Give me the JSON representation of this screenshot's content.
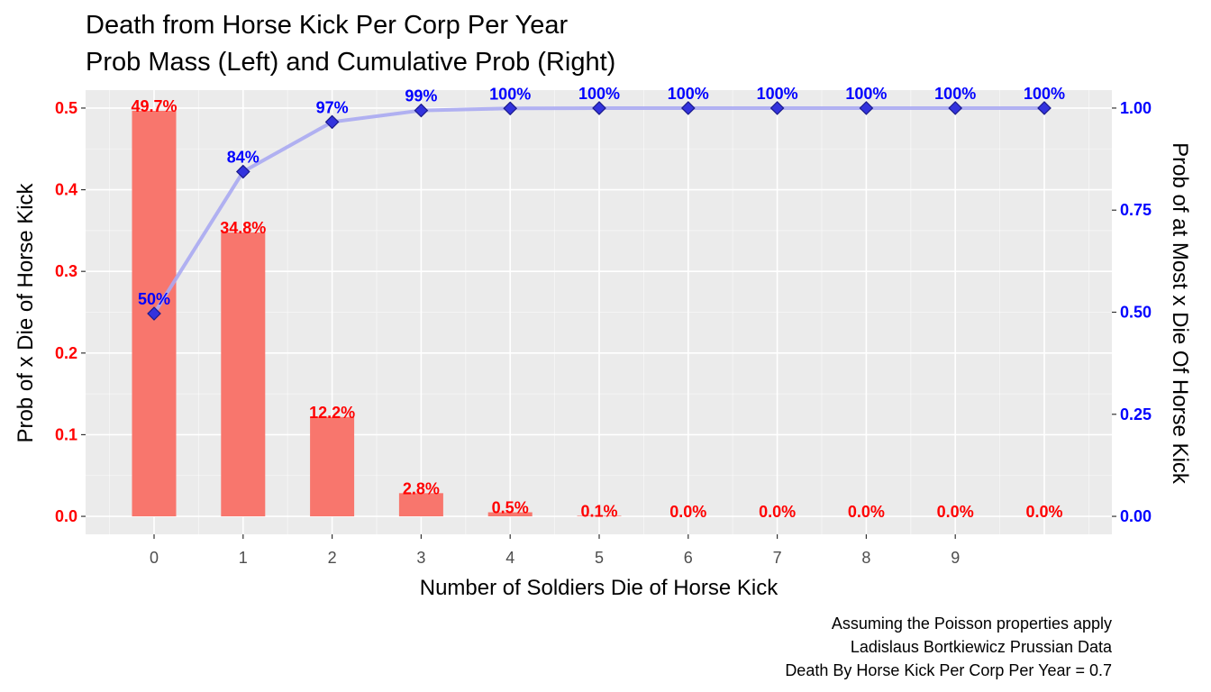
{
  "chart_data": {
    "type": "bar",
    "title": "Death from Horse Kick Per Corp Per Year",
    "subtitle": "Prob Mass (Left) and Cumulative Prob (Right)",
    "xlabel": "Number of Soldiers Die of Horse Kick",
    "ylabel": "Prob of x Die of Horse Kick",
    "ylabel_right": "Prob of at Most x Die Of Horse Kick",
    "x": [
      0,
      1,
      2,
      3,
      4,
      5,
      6,
      7,
      8,
      9,
      10
    ],
    "x_tick_labels": [
      "0",
      "1",
      "2",
      "3",
      "4",
      "5",
      "6",
      "7",
      "8",
      "9"
    ],
    "ylim": [
      -0.022,
      0.522
    ],
    "ylim_right": [
      -0.044,
      1.044
    ],
    "y_ticks": [
      0,
      0.1,
      0.2,
      0.3,
      0.4,
      0.5
    ],
    "y_tick_labels": [
      "0.0",
      "0.1",
      "0.2",
      "0.3",
      "0.4",
      "0.5"
    ],
    "y_right_ticks": [
      0,
      0.25,
      0.5,
      0.75,
      1.0
    ],
    "y_right_tick_labels": [
      "0.00",
      "0.25",
      "0.50",
      "0.75",
      "1.00"
    ],
    "grid": true,
    "series": [
      {
        "type": "bar",
        "axis": "left",
        "color": "#f8766d",
        "values": [
          0.4966,
          0.3476,
          0.1217,
          0.0284,
          0.005,
          0.0007,
          0.0001,
          0.0,
          0.0,
          0.0,
          0.0
        ],
        "labels": [
          "49.7%",
          "34.8%",
          "12.2%",
          "2.8%",
          "0.5%",
          "0.1%",
          "0.0%",
          "0.0%",
          "0.0%",
          "0.0%",
          "0.0%"
        ]
      },
      {
        "type": "line",
        "axis": "right",
        "color": "#0000ff",
        "line_color": "#aaaaf2",
        "values": [
          0.4966,
          0.8442,
          0.9659,
          0.9942,
          0.9992,
          0.9999,
          1.0,
          1.0,
          1.0,
          1.0,
          1.0
        ],
        "labels": [
          "50%",
          "84%",
          "97%",
          "99%",
          "100%",
          "100%",
          "100%",
          "100%",
          "100%",
          "100%",
          "100%"
        ]
      }
    ],
    "caption": [
      "Assuming the Poisson properties apply",
      "Ladislaus Bortkiewicz Prussian Data",
      "Death By Horse Kick Per Corp Per Year = 0.7"
    ],
    "colors": {
      "panel_background": "#ebebeb",
      "grid_major": "#ffffff",
      "left_axis": "#ff0000",
      "right_axis": "#0000ff"
    }
  }
}
